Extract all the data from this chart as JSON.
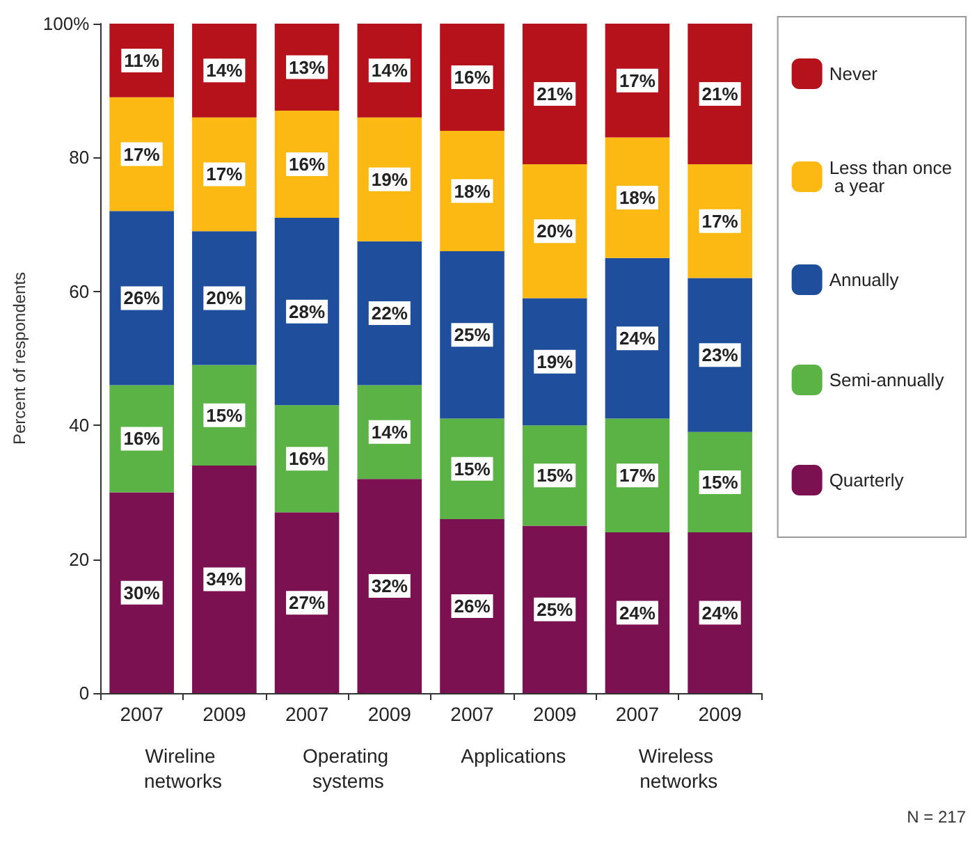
{
  "chart_data": {
    "type": "bar",
    "stacked": true,
    "ylabel": "Percent of respondents",
    "categories": [
      "2007",
      "2009",
      "2007",
      "2009",
      "2007",
      "2009",
      "2007",
      "2009"
    ],
    "series": [
      {
        "name": "Quarterly",
        "color": "#7b1150",
        "values": [
          30,
          34,
          27,
          32,
          26,
          25,
          24,
          24
        ],
        "value_labels": [
          "30%",
          "34%",
          "27%",
          "32%",
          "26%",
          "25%",
          "24%",
          "24%"
        ]
      },
      {
        "name": "Semi-annually",
        "color": "#5bb346",
        "values": [
          16,
          15,
          16,
          14,
          15,
          15,
          17,
          15
        ],
        "value_labels": [
          "16%",
          "15%",
          "16%",
          "14%",
          "15%",
          "15%",
          "17%",
          "15%"
        ]
      },
      {
        "name": "Annually",
        "color": "#1f4e9c",
        "values": [
          26,
          20,
          28,
          21.5,
          25,
          19,
          24,
          23
        ],
        "value_labels": [
          "26%",
          "20%",
          "28%",
          "22%",
          "25%",
          "19%",
          "24%",
          "23%"
        ]
      },
      {
        "name": "Less than once a year",
        "color": "#fdb913",
        "values": [
          17,
          17,
          16,
          18.5,
          18,
          20,
          18,
          17
        ],
        "value_labels": [
          "17%",
          "17%",
          "16%",
          "19%",
          "18%",
          "20%",
          "18%",
          "17%"
        ]
      },
      {
        "name": "Never",
        "color": "#b5121b",
        "values": [
          11,
          14,
          13,
          14,
          16,
          21,
          17,
          21
        ],
        "value_labels": [
          "11%",
          "14%",
          "13%",
          "14%",
          "16%",
          "21%",
          "17%",
          "21%"
        ]
      }
    ],
    "ylim": [
      0,
      100
    ],
    "yticks": [
      0,
      20,
      40,
      60,
      80,
      {
        "value": 100,
        "label": "100%"
      }
    ],
    "grid": false,
    "legend": "right",
    "annotations": [
      "Wireline networks",
      "Operating systems",
      "Applications",
      "Wireless networks",
      "N = 217"
    ]
  }
}
